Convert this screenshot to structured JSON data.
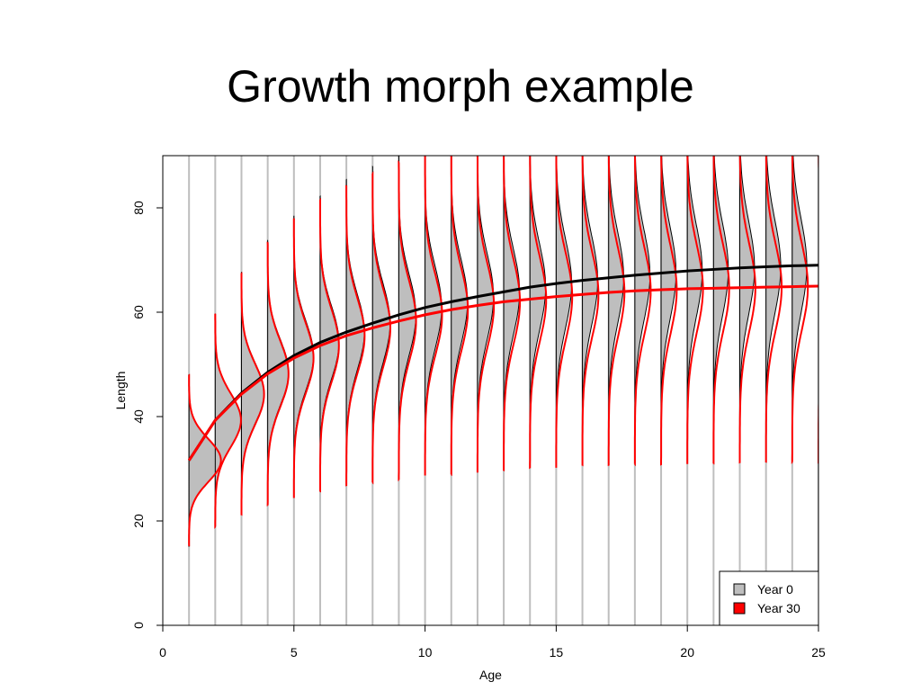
{
  "chart_data": {
    "type": "growth-density",
    "title": "Growth morph example",
    "x_label": "Age",
    "y_label": "Length",
    "x": [
      1,
      2,
      3,
      4,
      5,
      6,
      7,
      8,
      9,
      10,
      11,
      12,
      13,
      14,
      15,
      16,
      17,
      18,
      19,
      20,
      21,
      22,
      23,
      24,
      25
    ],
    "series": [
      {
        "name": "Year 0",
        "color": "#000000",
        "fill": "#bebebe",
        "density_fill": true,
        "values": [
          31.6,
          39.3,
          44.5,
          48.5,
          51.7,
          54.2,
          56.2,
          57.9,
          59.5,
          60.9,
          62.0,
          63.0,
          63.9,
          64.8,
          65.5,
          66.1,
          66.6,
          67.1,
          67.5,
          67.9,
          68.2,
          68.5,
          68.7,
          68.9,
          69.0
        ],
        "sd": [
          4.1,
          5.1,
          5.8,
          6.3,
          6.7,
          7.0,
          7.3,
          7.5,
          7.7,
          7.9,
          8.1,
          8.2,
          8.3,
          8.4,
          8.5,
          8.6,
          8.7,
          8.7,
          8.8,
          8.8,
          8.9,
          8.9,
          8.9,
          9.0,
          9.0
        ]
      },
      {
        "name": "Year 30",
        "color": "#ff0000",
        "fill": "#ff0000",
        "density_fill": false,
        "values": [
          31.6,
          39.3,
          44.3,
          48.2,
          51.2,
          53.6,
          55.5,
          57.0,
          58.3,
          59.5,
          60.5,
          61.3,
          62.0,
          62.5,
          63.0,
          63.4,
          63.8,
          64.1,
          64.3,
          64.5,
          64.6,
          64.7,
          64.8,
          64.9,
          65.0
        ],
        "sd": [
          4.1,
          5.1,
          5.8,
          6.3,
          6.7,
          7.0,
          7.2,
          7.4,
          7.6,
          7.7,
          7.9,
          8.0,
          8.1,
          8.1,
          8.2,
          8.2,
          8.3,
          8.3,
          8.4,
          8.4,
          8.4,
          8.4,
          8.4,
          8.4,
          8.5
        ]
      }
    ],
    "xlim": [
      0,
      25
    ],
    "xticks": [
      0,
      5,
      10,
      15,
      20,
      25
    ],
    "ylim": [
      0,
      90
    ],
    "yticks": [
      0,
      20,
      40,
      60,
      80
    ],
    "legend": "bottom-right"
  }
}
